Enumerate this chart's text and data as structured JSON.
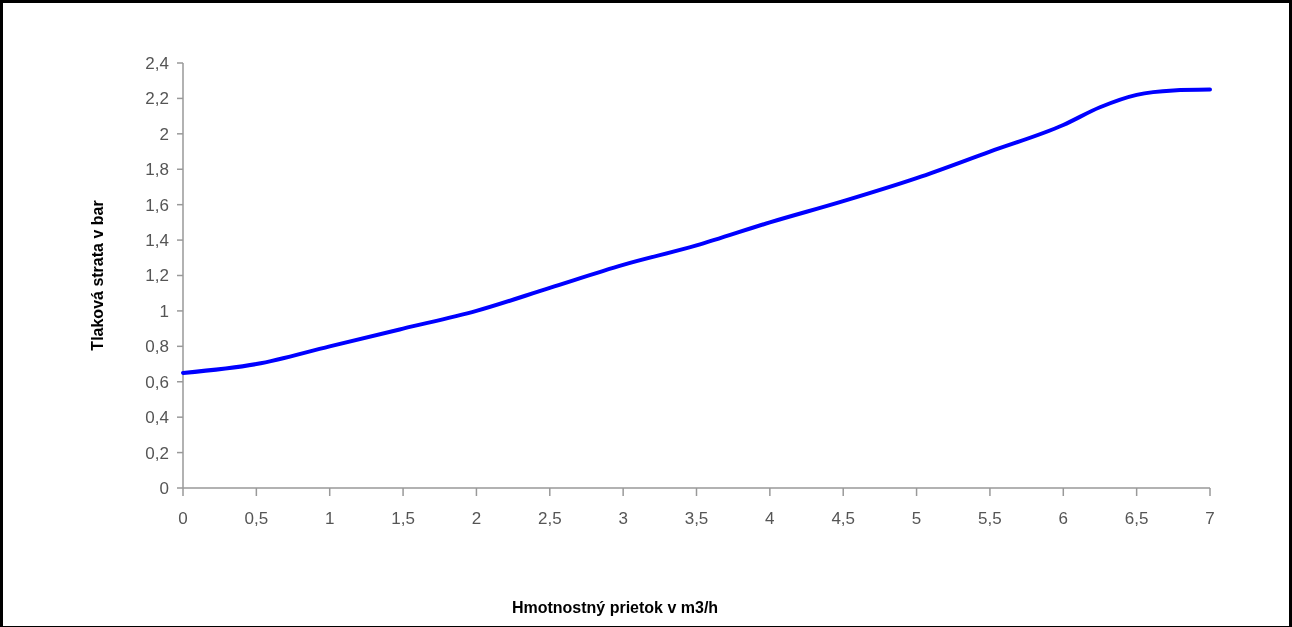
{
  "chart_data": {
    "type": "line",
    "xlabel": "Hmotnostný prietok v m3/h",
    "ylabel": "Tlaková strata v bar",
    "x": [
      0,
      0.5,
      1,
      1.5,
      2,
      2.5,
      3,
      3.5,
      4,
      4.5,
      5,
      5.5,
      6,
      6.25,
      6.5,
      6.75,
      7
    ],
    "series": [
      {
        "color": "#0000ff",
        "values": [
          0.65,
          0.7,
          0.8,
          0.9,
          1.0,
          1.13,
          1.26,
          1.37,
          1.5,
          1.62,
          1.75,
          1.9,
          2.05,
          2.15,
          2.22,
          2.245,
          2.25
        ]
      }
    ],
    "xlim": [
      0,
      7
    ],
    "xticks": [
      0,
      {
        "value": 0.5,
        "label": "0,5"
      },
      1,
      {
        "value": 1.5,
        "label": "1,5"
      },
      2,
      {
        "value": 2.5,
        "label": "2,5"
      },
      3,
      {
        "value": 3.5,
        "label": "3,5"
      },
      4,
      {
        "value": 4.5,
        "label": "4,5"
      },
      5,
      {
        "value": 5.5,
        "label": "5,5"
      },
      6,
      {
        "value": 6.5,
        "label": "6,5"
      },
      7
    ],
    "ylim": [
      0,
      2.4
    ],
    "yticks": [
      0,
      {
        "value": 0.2,
        "label": "0,2"
      },
      {
        "value": 0.4,
        "label": "0,4"
      },
      {
        "value": 0.6,
        "label": "0,6"
      },
      {
        "value": 0.8,
        "label": "0,8"
      },
      1,
      {
        "value": 1.2,
        "label": "1,2"
      },
      {
        "value": 1.4,
        "label": "1,4"
      },
      {
        "value": 1.6,
        "label": "1,6"
      },
      {
        "value": 1.8,
        "label": "1,8"
      },
      2,
      {
        "value": 2.2,
        "label": "2,2"
      },
      {
        "value": 2.4,
        "label": "2,4"
      }
    ],
    "grid": false,
    "marker": "none",
    "line_style": "solid"
  }
}
